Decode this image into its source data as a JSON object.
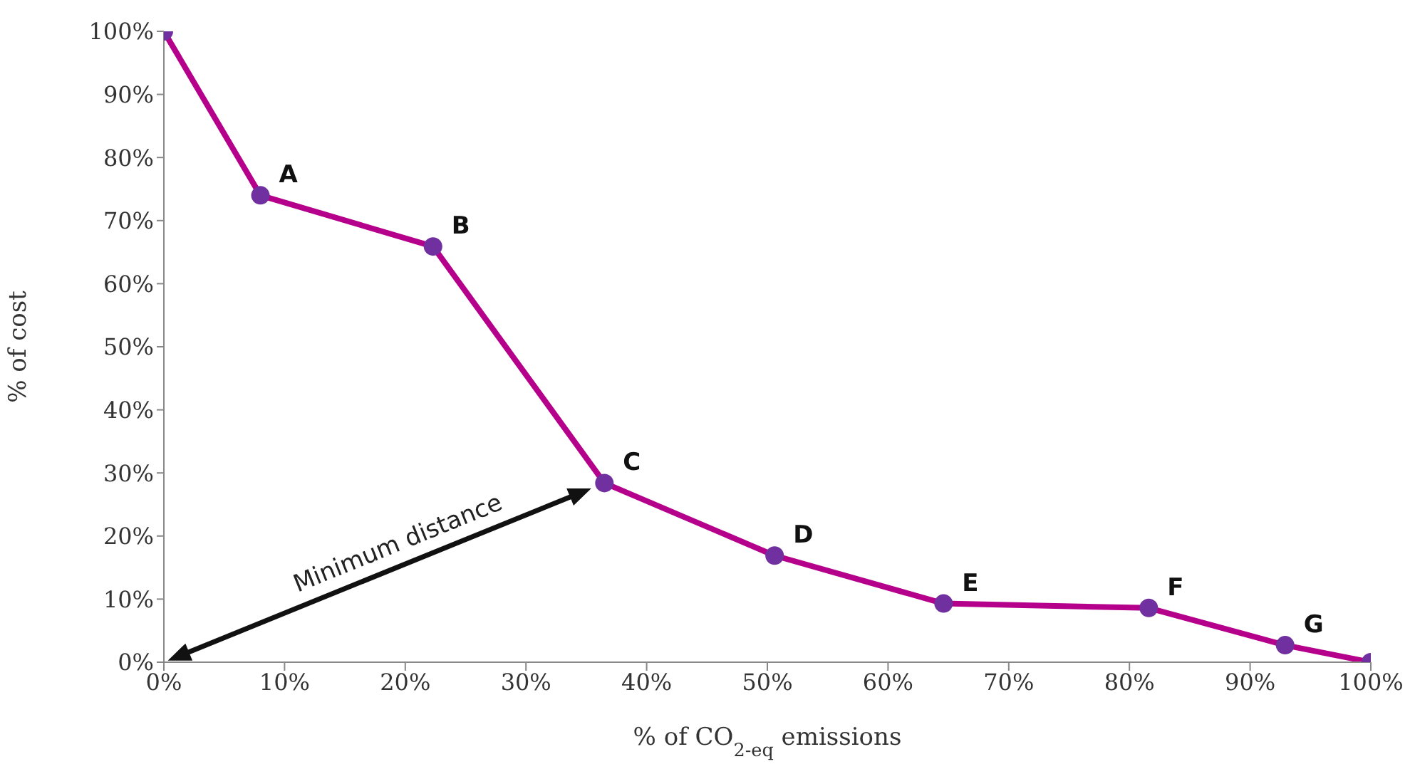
{
  "chart_data": {
    "type": "line",
    "xlabel": "% of CO$_{2-eq}$ emissions",
    "ylabel": "% of cost",
    "x": [
      0,
      8.0,
      22.3,
      36.5,
      50.6,
      64.6,
      81.6,
      92.9,
      100
    ],
    "series": [
      {
        "color": "#b5008c",
        "colors": [
          "#70309f",
          "#70309f",
          "#70309f",
          "#70309f",
          "#70309f",
          "#70309f",
          "#70309f",
          "#70309f",
          "#70309f"
        ],
        "values": [
          100,
          74.0,
          65.9,
          28.4,
          16.9,
          9.3,
          8.6,
          2.7,
          0
        ]
      }
    ],
    "xlim": [
      0,
      100
    ],
    "ylim": [
      0,
      100
    ],
    "xticks": [
      {
        "value": 0,
        "label": "0%"
      },
      {
        "value": 10,
        "label": "10%"
      },
      {
        "value": 20,
        "label": "20%"
      },
      {
        "value": 30,
        "label": "30%"
      },
      {
        "value": 40,
        "label": "40%"
      },
      {
        "value": 50,
        "label": "50%"
      },
      {
        "value": 60,
        "label": "60%"
      },
      {
        "value": 70,
        "label": "70%"
      },
      {
        "value": 80,
        "label": "80%"
      },
      {
        "value": 90,
        "label": "90%"
      },
      {
        "value": 100,
        "label": "100%"
      }
    ],
    "yticks": [
      {
        "value": 0,
        "label": "0%"
      },
      {
        "value": 10,
        "label": "10%"
      },
      {
        "value": 20,
        "label": "20%"
      },
      {
        "value": 30,
        "label": "30%"
      },
      {
        "value": 40,
        "label": "40%"
      },
      {
        "value": 50,
        "label": "50%"
      },
      {
        "value": 60,
        "label": "60%"
      },
      {
        "value": 70,
        "label": "70%"
      },
      {
        "value": 80,
        "label": "80%"
      },
      {
        "value": 90,
        "label": "90%"
      },
      {
        "value": 100,
        "label": "100%"
      }
    ],
    "grid": false,
    "legend": false,
    "marker": "circle",
    "line_style": "solid",
    "annotations": [
      {
        "text": "A",
        "x": 8.0,
        "y": 74.0
      },
      {
        "text": "B",
        "x": 22.3,
        "y": 65.9
      },
      {
        "text": "C",
        "x": 36.5,
        "y": 28.4
      },
      {
        "text": "D",
        "x": 50.6,
        "y": 16.9
      },
      {
        "text": "E",
        "x": 64.6,
        "y": 9.3
      },
      {
        "text": "F",
        "x": 81.6,
        "y": 8.6
      },
      {
        "text": "G",
        "x": 92.9,
        "y": 2.7
      },
      "Minimum distance"
    ]
  }
}
